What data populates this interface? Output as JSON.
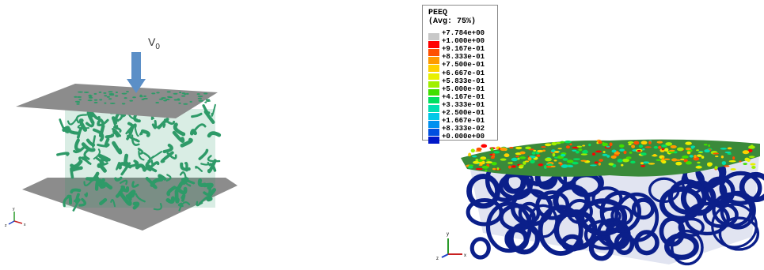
{
  "left": {
    "velocity_label": "V",
    "velocity_subscript": "0",
    "colors": {
      "plate": "#8c8c8c",
      "foam": "#2e9a68",
      "arrow": "#5b8fc7"
    }
  },
  "right": {
    "legend": {
      "title": "PEEQ",
      "subtitle": "(Avg: 75%)",
      "entries": [
        {
          "label": "+7.784e+00",
          "color": "#c8c8c8"
        },
        {
          "label": "+1.000e+00",
          "color": "#ff0000"
        },
        {
          "label": "+9.167e-01",
          "color": "#ff5000"
        },
        {
          "label": "+8.333e-01",
          "color": "#ff9a00"
        },
        {
          "label": "+7.500e-01",
          "color": "#ffd000"
        },
        {
          "label": "+6.667e-01",
          "color": "#e8f000"
        },
        {
          "label": "+5.833e-01",
          "color": "#a0f000"
        },
        {
          "label": "+5.000e-01",
          "color": "#40e000"
        },
        {
          "label": "+4.167e-01",
          "color": "#00e060"
        },
        {
          "label": "+3.333e-01",
          "color": "#00e0b0"
        },
        {
          "label": "+2.500e-01",
          "color": "#00c8e8"
        },
        {
          "label": "+1.667e-01",
          "color": "#0090f0"
        },
        {
          "label": "+8.333e-02",
          "color": "#0050e0"
        },
        {
          "label": "+0.000e+00",
          "color": "#0018c8"
        }
      ]
    },
    "colors": {
      "foam": "#0b1f8a",
      "foam_dark": "#061466"
    }
  },
  "axes": {
    "x": "x",
    "y": "y",
    "z": "z"
  }
}
